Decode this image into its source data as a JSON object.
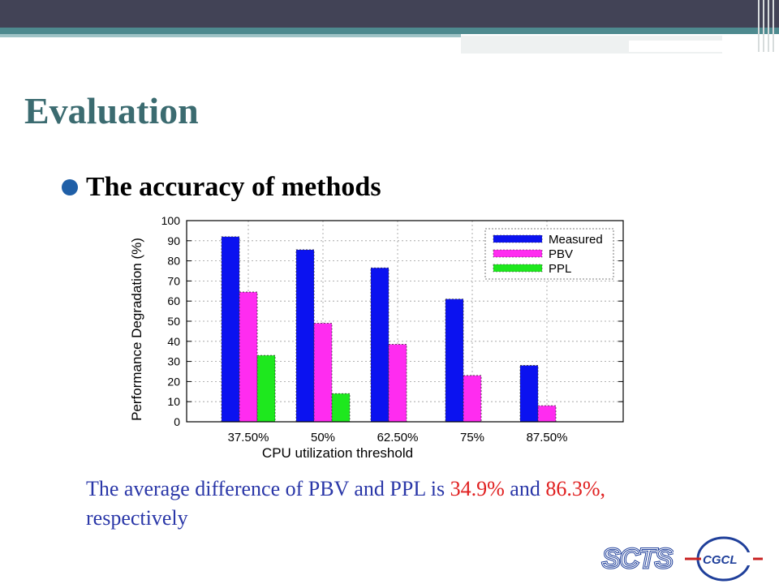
{
  "slide": {
    "title": "Evaluation",
    "bullet": "The accuracy of methods",
    "caption": {
      "part1": "The average difference of PBV and PPL is ",
      "value1": "34.9%",
      "part2": " and ",
      "value2": "86.3%,",
      "part3": "respectively"
    },
    "logos": {
      "left": "SCTS",
      "right": "CGCL"
    }
  },
  "colors": {
    "topbar": "#424356",
    "stripe": "#4e8a8f",
    "title": "#3b6b70",
    "caption": "#2a37a8",
    "highlight": "#e02020"
  },
  "chart_data": {
    "type": "bar",
    "title": "",
    "xlabel": "CPU utilization threshold",
    "ylabel": "Performance Degradation (%)",
    "ylim": [
      0,
      100
    ],
    "yticks": [
      0,
      10,
      20,
      30,
      40,
      50,
      60,
      70,
      80,
      90,
      100
    ],
    "grid": true,
    "legend_position": "top-right",
    "categories": [
      "37.50%",
      "50%",
      "62.50%",
      "75%",
      "87.50%"
    ],
    "series": [
      {
        "name": "Measured",
        "color": "#0b12f0",
        "values": [
          92,
          85.5,
          76.5,
          61,
          28
        ]
      },
      {
        "name": "PBV",
        "color": "#ff2cf0",
        "values": [
          64.5,
          49,
          38.5,
          23,
          8
        ]
      },
      {
        "name": "PPL",
        "color": "#1ee81e",
        "values": [
          33,
          14,
          null,
          null,
          null
        ]
      }
    ]
  }
}
